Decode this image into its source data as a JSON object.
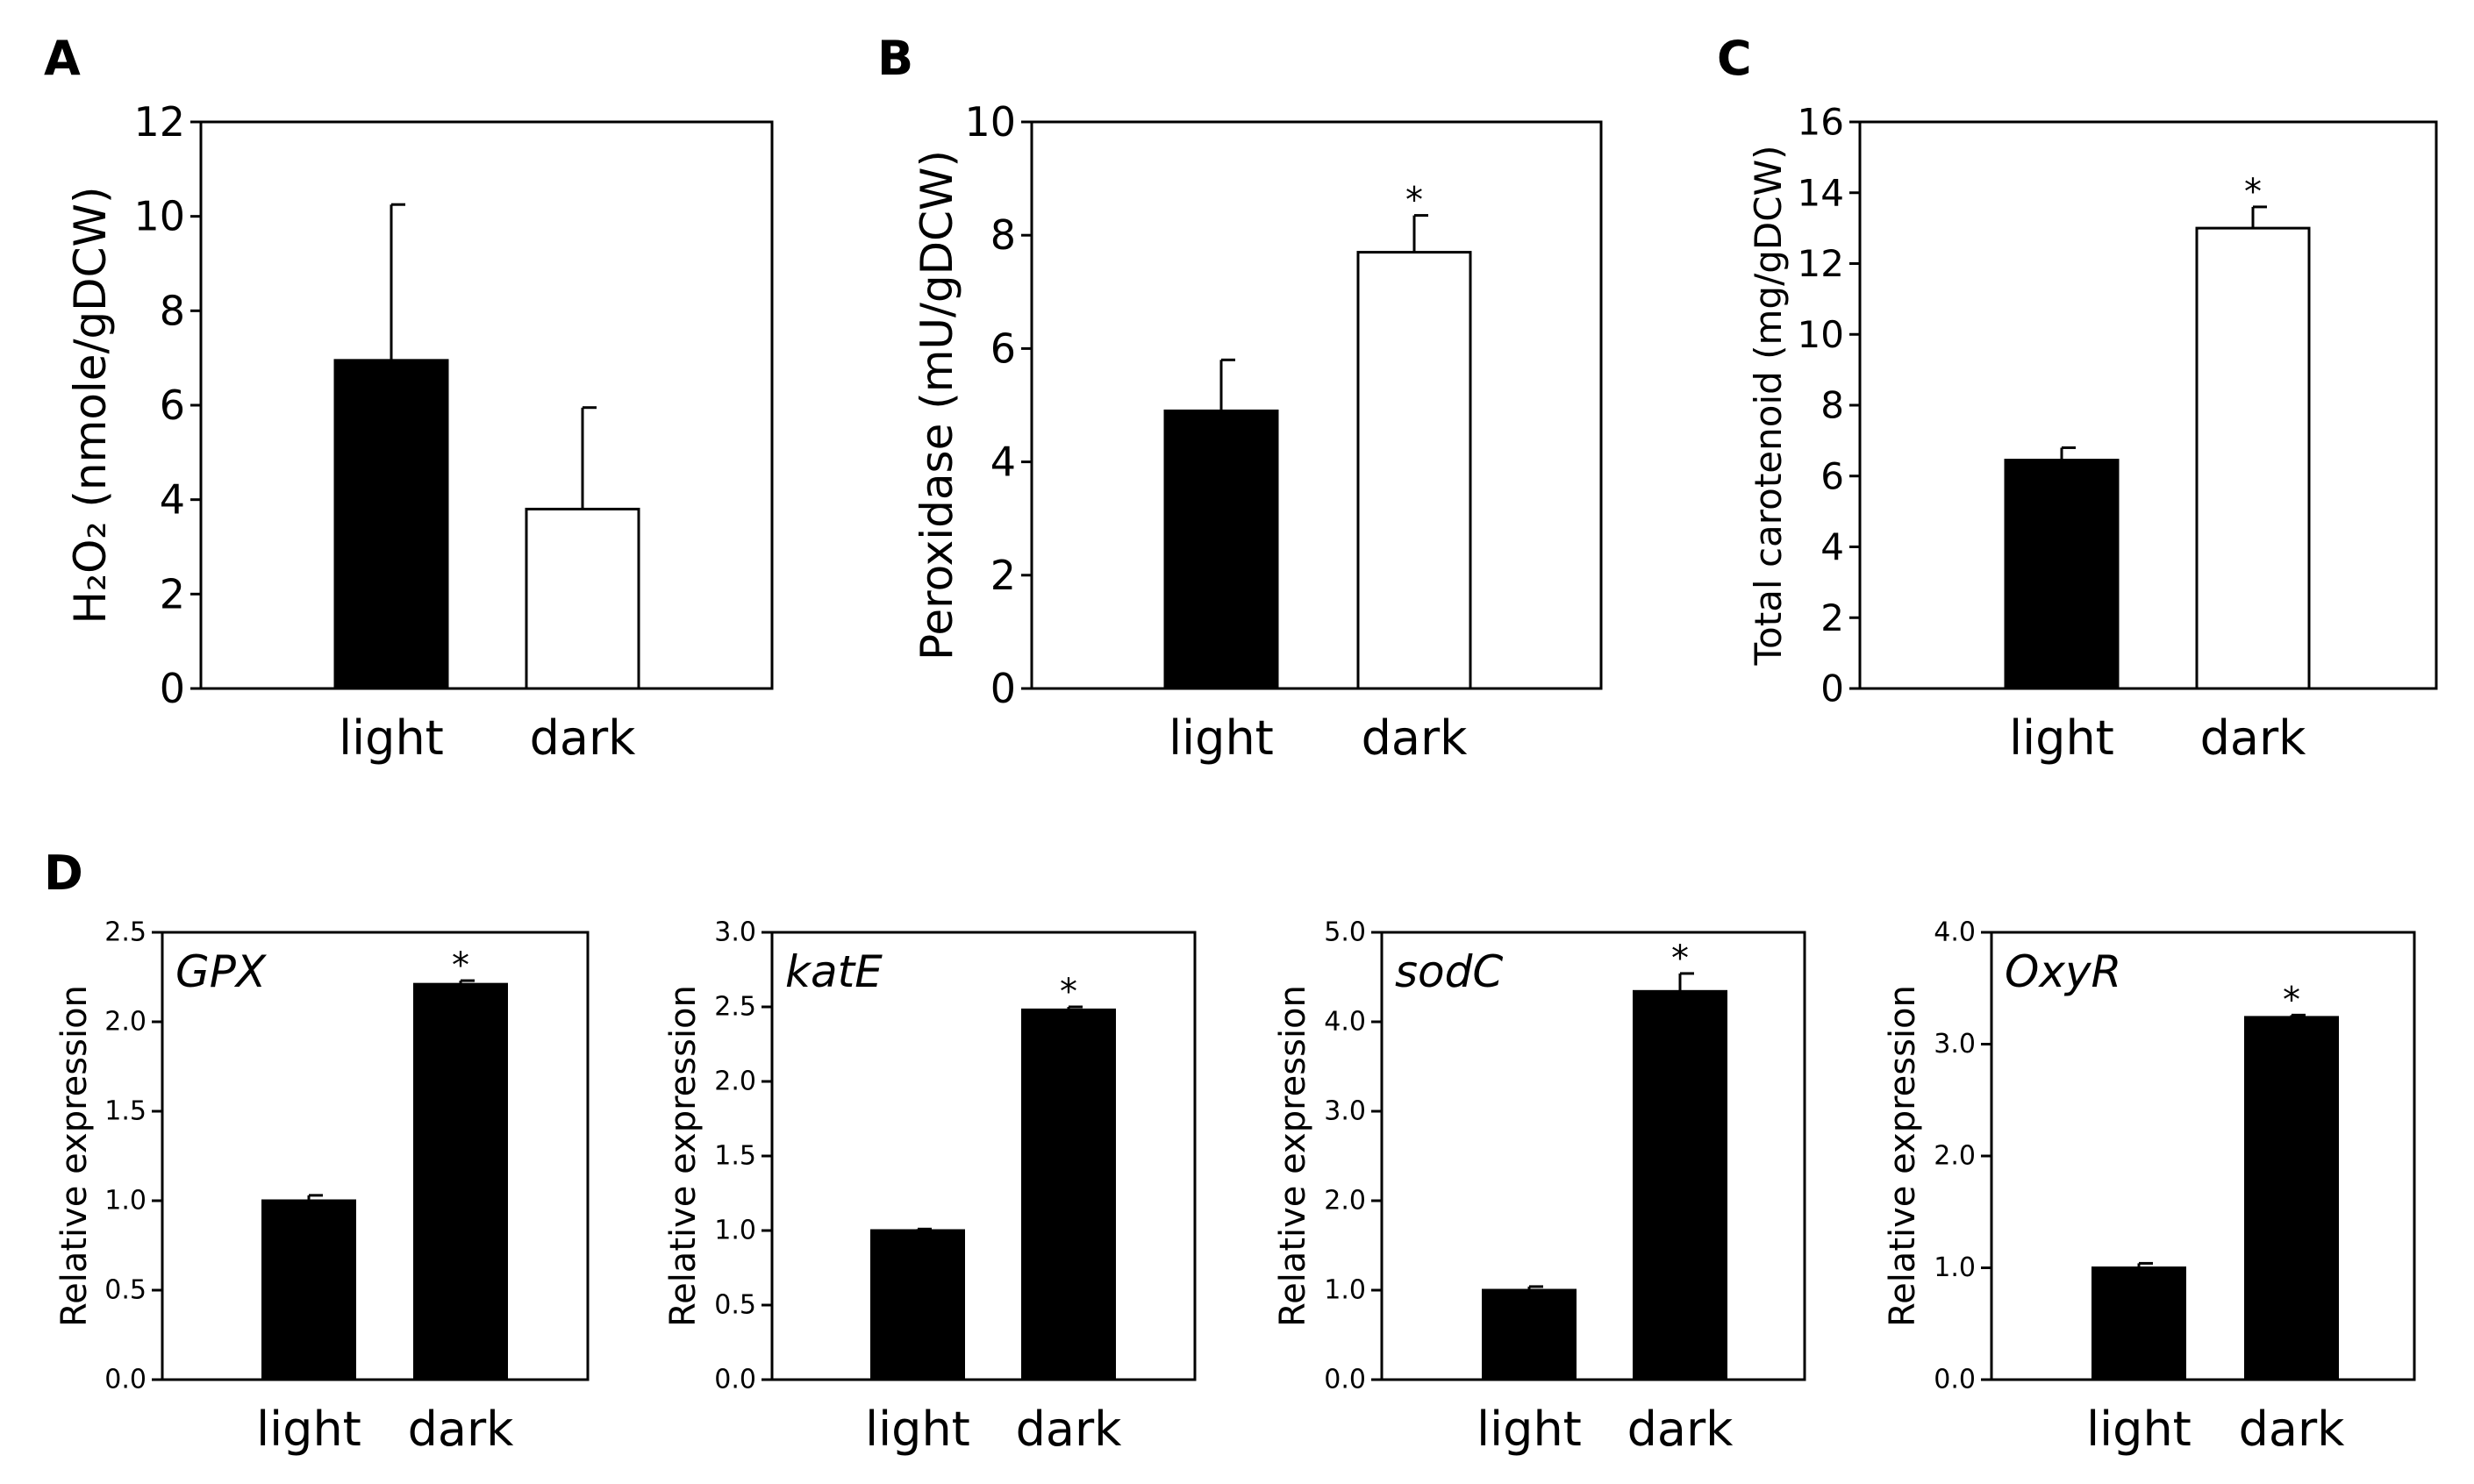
{
  "chart_data": [
    {
      "id": "A",
      "panel_label": "A",
      "type": "bar",
      "title": "",
      "ylabel": "H₂O₂ (nmole/gDCW)",
      "ylim": [
        0,
        12
      ],
      "yticks": [
        0,
        2,
        4,
        6,
        8,
        10,
        12
      ],
      "ytick_labels": [
        "0",
        "2",
        "4",
        "6",
        "8",
        "10",
        "12"
      ],
      "categories": [
        "light",
        "dark"
      ],
      "values": [
        6.95,
        3.8
      ],
      "errors": [
        3.3,
        2.15
      ],
      "fills": [
        "#000000",
        "#ffffff"
      ],
      "significance": [
        "",
        ""
      ]
    },
    {
      "id": "B",
      "panel_label": "B",
      "type": "bar",
      "title": "",
      "ylabel": "Peroxidase (mU/gDCW)",
      "ylim": [
        0,
        10
      ],
      "yticks": [
        0,
        2,
        4,
        6,
        8,
        10
      ],
      "ytick_labels": [
        "0",
        "2",
        "4",
        "6",
        "8",
        "10"
      ],
      "categories": [
        "light",
        "dark"
      ],
      "values": [
        4.9,
        7.7
      ],
      "errors": [
        0.9,
        0.65
      ],
      "fills": [
        "#000000",
        "#ffffff"
      ],
      "significance": [
        "",
        "*"
      ]
    },
    {
      "id": "C",
      "panel_label": "C",
      "type": "bar",
      "title": "",
      "ylabel": "Total carotenoid (mg/gDCW)",
      "ylim": [
        0,
        16
      ],
      "yticks": [
        0,
        2,
        4,
        6,
        8,
        10,
        12,
        14,
        16
      ],
      "ytick_labels": [
        "0",
        "2",
        "4",
        "6",
        "8",
        "10",
        "12",
        "14",
        "16"
      ],
      "categories": [
        "light",
        "dark"
      ],
      "values": [
        6.45,
        13.0
      ],
      "errors": [
        0.35,
        0.6
      ],
      "fills": [
        "#000000",
        "#ffffff"
      ],
      "significance": [
        "",
        "*"
      ]
    },
    {
      "id": "D1",
      "panel_label": "D",
      "type": "bar",
      "title": "GPX",
      "ylabel": "Relative expression",
      "ylim": [
        0,
        2.5
      ],
      "yticks": [
        0,
        0.5,
        1.0,
        1.5,
        2.0,
        2.5
      ],
      "ytick_labels": [
        "0.0",
        "0.5",
        "1.0",
        "1.5",
        "2.0",
        "2.5"
      ],
      "categories": [
        "light",
        "dark"
      ],
      "values": [
        1.0,
        2.21
      ],
      "errors": [
        0.03,
        0.02
      ],
      "fills": [
        "#000000",
        "#000000"
      ],
      "significance": [
        "",
        "*"
      ]
    },
    {
      "id": "D2",
      "panel_label": "",
      "type": "bar",
      "title": "katE",
      "ylabel": "Relative expression",
      "ylim": [
        0,
        3.0
      ],
      "yticks": [
        0,
        0.5,
        1.0,
        1.5,
        2.0,
        2.5,
        3.0
      ],
      "ytick_labels": [
        "0.0",
        "0.5",
        "1.0",
        "1.5",
        "2.0",
        "2.5",
        "3.0"
      ],
      "categories": [
        "light",
        "dark"
      ],
      "values": [
        1.0,
        2.48
      ],
      "errors": [
        0.01,
        0.02
      ],
      "fills": [
        "#000000",
        "#000000"
      ],
      "significance": [
        "",
        "*"
      ]
    },
    {
      "id": "D3",
      "panel_label": "",
      "type": "bar",
      "title": "sodC",
      "ylabel": "Relative expression",
      "ylim": [
        0,
        5.0
      ],
      "yticks": [
        0,
        1.0,
        2.0,
        3.0,
        4.0,
        5.0
      ],
      "ytick_labels": [
        "0.0",
        "1.0",
        "2.0",
        "3.0",
        "4.0",
        "5.0"
      ],
      "categories": [
        "light",
        "dark"
      ],
      "values": [
        1.0,
        4.34
      ],
      "errors": [
        0.04,
        0.2
      ],
      "fills": [
        "#000000",
        "#000000"
      ],
      "significance": [
        "",
        "*"
      ]
    },
    {
      "id": "D4",
      "panel_label": "",
      "type": "bar",
      "title": "OxyR",
      "ylabel": "Relative expression",
      "ylim": [
        0,
        4.0
      ],
      "yticks": [
        0,
        1.0,
        2.0,
        3.0,
        4.0
      ],
      "ytick_labels": [
        "0.0",
        "1.0",
        "2.0",
        "3.0",
        "4.0"
      ],
      "categories": [
        "light",
        "dark"
      ],
      "values": [
        1.0,
        3.24
      ],
      "errors": [
        0.04,
        0.02
      ],
      "fills": [
        "#000000",
        "#000000"
      ],
      "significance": [
        "",
        "*"
      ]
    }
  ]
}
